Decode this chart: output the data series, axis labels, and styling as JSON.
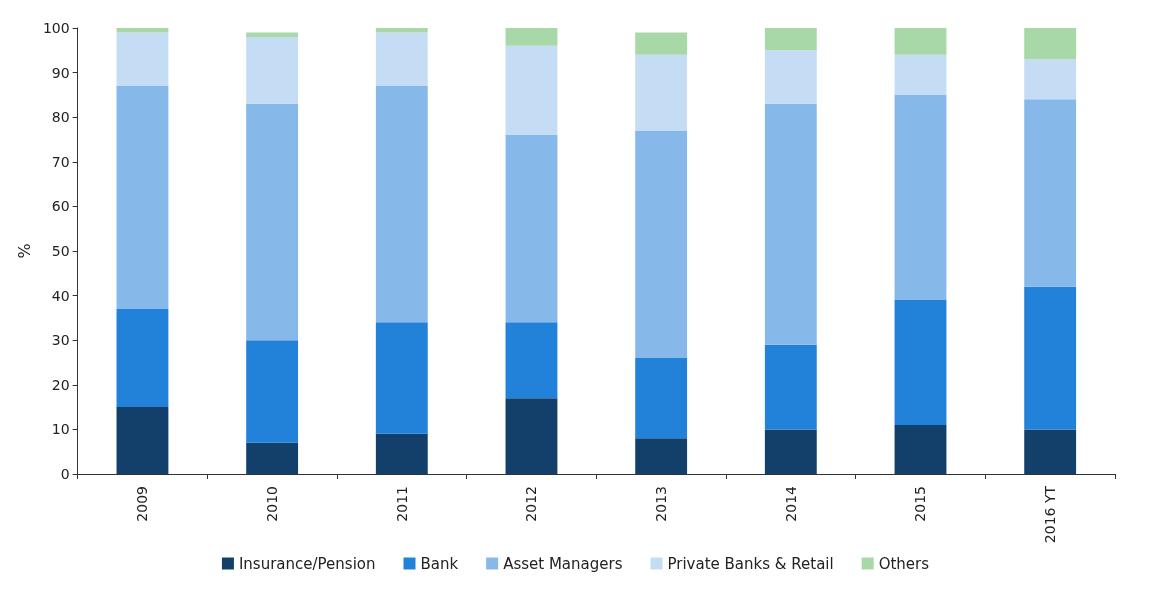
{
  "chart_data": {
    "type": "bar",
    "stacked": true,
    "ylabel": "%",
    "categories": [
      "2009",
      "2010",
      "2011",
      "2012",
      "2013",
      "2014",
      "2015",
      "2016 YT"
    ],
    "series": [
      {
        "name": "Insurance/Pension",
        "color": "#12406b",
        "values": [
          15,
          7,
          9,
          17,
          8,
          10,
          11,
          10
        ]
      },
      {
        "name": "Bank",
        "color": "#2281d9",
        "values": [
          22,
          23,
          25,
          17,
          18,
          19,
          28,
          32
        ]
      },
      {
        "name": "Asset Managers",
        "color": "#86b8ea",
        "values": [
          50,
          53,
          53,
          42,
          51,
          54,
          46,
          42
        ]
      },
      {
        "name": "Private Banks & Retail",
        "color": "#c5ddf4",
        "values": [
          12,
          15,
          12,
          20,
          17,
          12,
          9,
          9
        ]
      },
      {
        "name": "Others",
        "color": "#a8d8a8",
        "values": [
          1,
          1,
          1,
          4,
          5,
          5,
          6,
          7
        ]
      }
    ],
    "ylim": [
      0,
      100
    ],
    "yticks": [
      0,
      10,
      20,
      30,
      40,
      50,
      60,
      70,
      80,
      90,
      100
    ],
    "grid": false,
    "legend": "bottom"
  }
}
